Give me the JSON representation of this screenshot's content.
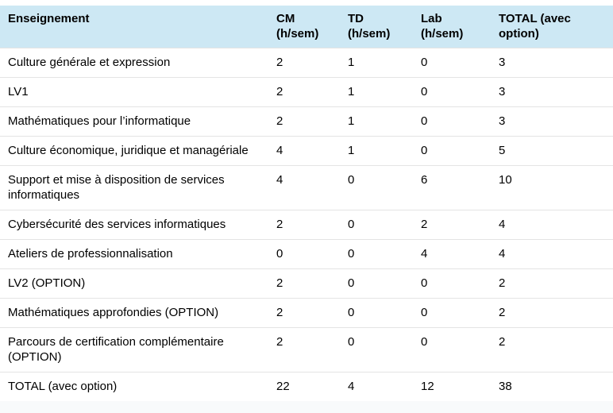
{
  "table": {
    "headers": {
      "course": "Enseignement",
      "cm": "CM (h/sem)",
      "td": "TD (h/sem)",
      "lab": "Lab (h/sem)",
      "total": "TOTAL (avec option)"
    },
    "rows": [
      {
        "course": "Culture générale et expression",
        "cm": "2",
        "td": "1",
        "lab": "0",
        "total": "3"
      },
      {
        "course": "LV1",
        "cm": "2",
        "td": "1",
        "lab": "0",
        "total": "3"
      },
      {
        "course": "Mathématiques pour l’informatique",
        "cm": "2",
        "td": "1",
        "lab": "0",
        "total": "3"
      },
      {
        "course": "Culture économique, juridique et managériale",
        "cm": "4",
        "td": "1",
        "lab": "0",
        "total": "5"
      },
      {
        "course": "Support et mise à disposition de services informatiques",
        "cm": "4",
        "td": "0",
        "lab": "6",
        "total": "10"
      },
      {
        "course": "Cybersécurité des services informatiques",
        "cm": "2",
        "td": "0",
        "lab": "2",
        "total": "4"
      },
      {
        "course": "Ateliers de professionnalisation",
        "cm": "0",
        "td": "0",
        "lab": "4",
        "total": "4"
      },
      {
        "course": "LV2 (OPTION)",
        "cm": "2",
        "td": "0",
        "lab": "0",
        "total": "2"
      },
      {
        "course": "Mathématiques approfondies (OPTION)",
        "cm": "2",
        "td": "0",
        "lab": "0",
        "total": "2"
      },
      {
        "course": "Parcours de certification complémentaire (OPTION)",
        "cm": "2",
        "td": "0",
        "lab": "0",
        "total": "2"
      },
      {
        "course": "TOTAL (avec option)",
        "cm": "22",
        "td": "4",
        "lab": "12",
        "total": "38"
      }
    ]
  },
  "colors": {
    "header_bg": "#cde8f4",
    "row_border": "#e4e4e4",
    "text": "#000000",
    "footer_strip": "#f8fafb",
    "page_bg": "#ffffff"
  }
}
